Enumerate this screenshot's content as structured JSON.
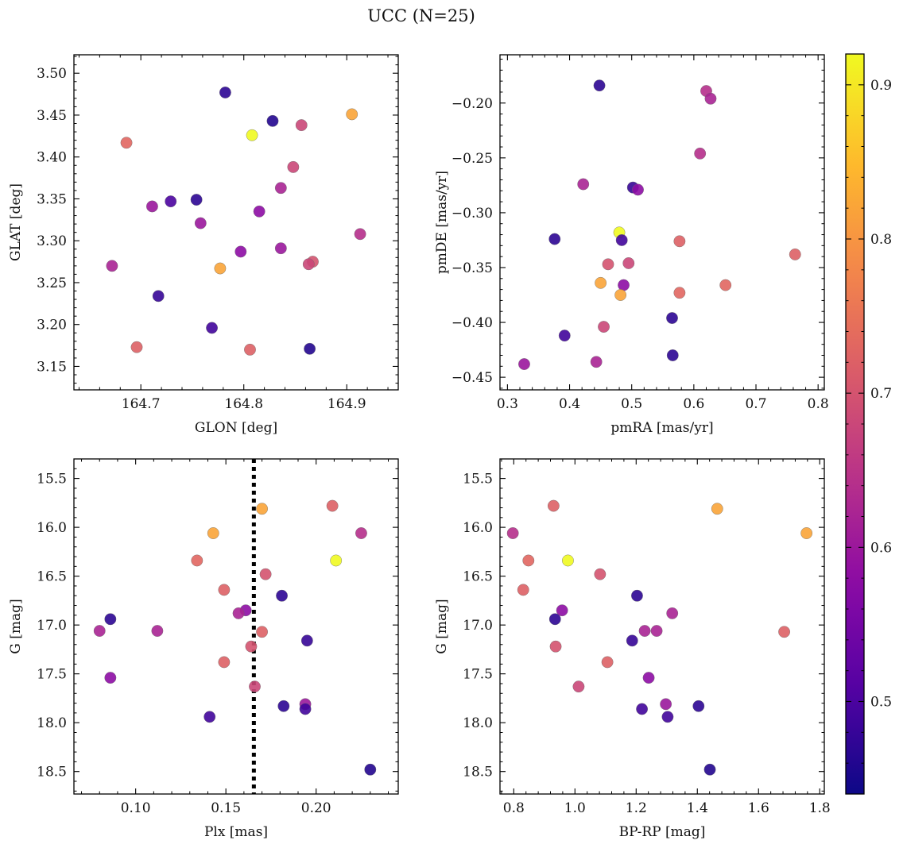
{
  "figure": {
    "title": "UCC (N=25)"
  },
  "colorbar": {
    "colormap": "plasma",
    "vmin": 0.44,
    "vmax": 0.92,
    "ticks": [
      0.5,
      0.6,
      0.7,
      0.8,
      0.9
    ],
    "tick_labels": [
      "0.5",
      "0.6",
      "0.7",
      "0.8",
      "0.9"
    ]
  },
  "chart_data": [
    {
      "type": "scatter",
      "xlabel": "GLON [deg]",
      "ylabel": "GLAT [deg]",
      "xlim": [
        164.635,
        164.95
      ],
      "ylim": [
        3.122,
        3.522
      ],
      "xticks": [
        164.7,
        164.8,
        164.9
      ],
      "xtick_labels": [
        "164.7",
        "164.8",
        "164.9"
      ],
      "yticks": [
        3.15,
        3.2,
        3.25,
        3.3,
        3.35,
        3.4,
        3.45,
        3.5
      ],
      "ytick_labels": [
        "3.15",
        "3.20",
        "3.25",
        "3.30",
        "3.35",
        "3.40",
        "3.45",
        "3.50"
      ],
      "points": [
        {
          "x": 164.782,
          "y": 3.477,
          "c": 0.47
        },
        {
          "x": 164.828,
          "y": 3.443,
          "c": 0.46
        },
        {
          "x": 164.856,
          "y": 3.438,
          "c": 0.68
        },
        {
          "x": 164.905,
          "y": 3.451,
          "c": 0.82
        },
        {
          "x": 164.808,
          "y": 3.426,
          "c": 0.92
        },
        {
          "x": 164.686,
          "y": 3.417,
          "c": 0.73
        },
        {
          "x": 164.848,
          "y": 3.388,
          "c": 0.68
        },
        {
          "x": 164.836,
          "y": 3.363,
          "c": 0.62
        },
        {
          "x": 164.754,
          "y": 3.349,
          "c": 0.47
        },
        {
          "x": 164.729,
          "y": 3.347,
          "c": 0.5
        },
        {
          "x": 164.711,
          "y": 3.341,
          "c": 0.6
        },
        {
          "x": 164.815,
          "y": 3.335,
          "c": 0.58
        },
        {
          "x": 164.758,
          "y": 3.321,
          "c": 0.6
        },
        {
          "x": 164.913,
          "y": 3.308,
          "c": 0.64
        },
        {
          "x": 164.836,
          "y": 3.291,
          "c": 0.6
        },
        {
          "x": 164.797,
          "y": 3.287,
          "c": 0.58
        },
        {
          "x": 164.867,
          "y": 3.275,
          "c": 0.7
        },
        {
          "x": 164.863,
          "y": 3.272,
          "c": 0.68
        },
        {
          "x": 164.672,
          "y": 3.27,
          "c": 0.62
        },
        {
          "x": 164.777,
          "y": 3.267,
          "c": 0.82
        },
        {
          "x": 164.717,
          "y": 3.234,
          "c": 0.48
        },
        {
          "x": 164.769,
          "y": 3.196,
          "c": 0.49
        },
        {
          "x": 164.696,
          "y": 3.173,
          "c": 0.72
        },
        {
          "x": 164.806,
          "y": 3.17,
          "c": 0.72
        },
        {
          "x": 164.864,
          "y": 3.171,
          "c": 0.46
        }
      ]
    },
    {
      "type": "scatter",
      "xlabel": "pmRA [mas/yr]",
      "ylabel": "pmDE [mas/yr]",
      "xlim": [
        0.288,
        0.81
      ],
      "ylim": [
        -0.4615,
        -0.156
      ],
      "xticks": [
        0.3,
        0.4,
        0.5,
        0.6,
        0.7,
        0.8
      ],
      "xtick_labels": [
        "0.3",
        "0.4",
        "0.5",
        "0.6",
        "0.7",
        "0.8"
      ],
      "yticks": [
        -0.45,
        -0.4,
        -0.35,
        -0.3,
        -0.25,
        -0.2
      ],
      "ytick_labels": [
        "−0.45",
        "−0.40",
        "−0.35",
        "−0.30",
        "−0.25",
        "−0.20"
      ],
      "points": [
        {
          "x": 0.448,
          "y": -0.184,
          "c": 0.47
        },
        {
          "x": 0.62,
          "y": -0.189,
          "c": 0.64
        },
        {
          "x": 0.627,
          "y": -0.196,
          "c": 0.62
        },
        {
          "x": 0.61,
          "y": -0.246,
          "c": 0.64
        },
        {
          "x": 0.422,
          "y": -0.274,
          "c": 0.62
        },
        {
          "x": 0.502,
          "y": -0.277,
          "c": 0.48
        },
        {
          "x": 0.51,
          "y": -0.279,
          "c": 0.58
        },
        {
          "x": 0.48,
          "y": -0.318,
          "c": 0.92
        },
        {
          "x": 0.376,
          "y": -0.324,
          "c": 0.47
        },
        {
          "x": 0.484,
          "y": -0.325,
          "c": 0.49
        },
        {
          "x": 0.577,
          "y": -0.326,
          "c": 0.72
        },
        {
          "x": 0.763,
          "y": -0.338,
          "c": 0.72
        },
        {
          "x": 0.462,
          "y": -0.347,
          "c": 0.7
        },
        {
          "x": 0.495,
          "y": -0.346,
          "c": 0.68
        },
        {
          "x": 0.45,
          "y": -0.364,
          "c": 0.82
        },
        {
          "x": 0.487,
          "y": -0.366,
          "c": 0.58
        },
        {
          "x": 0.651,
          "y": -0.366,
          "c": 0.73
        },
        {
          "x": 0.577,
          "y": -0.373,
          "c": 0.73
        },
        {
          "x": 0.482,
          "y": -0.375,
          "c": 0.82
        },
        {
          "x": 0.565,
          "y": -0.396,
          "c": 0.47
        },
        {
          "x": 0.455,
          "y": -0.404,
          "c": 0.68
        },
        {
          "x": 0.392,
          "y": -0.412,
          "c": 0.49
        },
        {
          "x": 0.566,
          "y": -0.43,
          "c": 0.47
        },
        {
          "x": 0.443,
          "y": -0.436,
          "c": 0.62
        },
        {
          "x": 0.327,
          "y": -0.438,
          "c": 0.6
        }
      ]
    },
    {
      "type": "scatter",
      "xlabel": "Plx [mas]",
      "ylabel": "G [mag]",
      "xlim": [
        0.0658,
        0.2455
      ],
      "ylim": [
        18.73,
        15.3
      ],
      "xticks": [
        0.1,
        0.15,
        0.2
      ],
      "xtick_labels": [
        "0.10",
        "0.15",
        "0.20"
      ],
      "yticks": [
        15.5,
        16.0,
        16.5,
        17.0,
        17.5,
        18.0,
        18.5
      ],
      "ytick_labels": [
        "15.5",
        "16.0",
        "16.5",
        "17.0",
        "17.5",
        "18.0",
        "18.5"
      ],
      "vline": {
        "x": 0.1655,
        "style": "dotted",
        "color": "#000000"
      },
      "points": [
        {
          "x": 0.17,
          "y": 15.81,
          "c": 0.82
        },
        {
          "x": 0.209,
          "y": 15.78,
          "c": 0.72
        },
        {
          "x": 0.143,
          "y": 16.06,
          "c": 0.82
        },
        {
          "x": 0.225,
          "y": 16.06,
          "c": 0.64
        },
        {
          "x": 0.134,
          "y": 16.34,
          "c": 0.73
        },
        {
          "x": 0.211,
          "y": 16.34,
          "c": 0.92
        },
        {
          "x": 0.172,
          "y": 16.48,
          "c": 0.7
        },
        {
          "x": 0.149,
          "y": 16.64,
          "c": 0.72
        },
        {
          "x": 0.181,
          "y": 16.7,
          "c": 0.47
        },
        {
          "x": 0.161,
          "y": 16.85,
          "c": 0.58
        },
        {
          "x": 0.157,
          "y": 16.88,
          "c": 0.62
        },
        {
          "x": 0.086,
          "y": 16.94,
          "c": 0.47
        },
        {
          "x": 0.08,
          "y": 17.06,
          "c": 0.62
        },
        {
          "x": 0.112,
          "y": 17.06,
          "c": 0.62
        },
        {
          "x": 0.17,
          "y": 17.07,
          "c": 0.72
        },
        {
          "x": 0.195,
          "y": 17.16,
          "c": 0.48
        },
        {
          "x": 0.164,
          "y": 17.22,
          "c": 0.7
        },
        {
          "x": 0.149,
          "y": 17.38,
          "c": 0.72
        },
        {
          "x": 0.086,
          "y": 17.54,
          "c": 0.58
        },
        {
          "x": 0.166,
          "y": 17.63,
          "c": 0.68
        },
        {
          "x": 0.194,
          "y": 17.81,
          "c": 0.6
        },
        {
          "x": 0.182,
          "y": 17.83,
          "c": 0.47
        },
        {
          "x": 0.194,
          "y": 17.86,
          "c": 0.49
        },
        {
          "x": 0.141,
          "y": 17.94,
          "c": 0.49
        },
        {
          "x": 0.23,
          "y": 18.48,
          "c": 0.46
        }
      ]
    },
    {
      "type": "scatter",
      "xlabel": "BP-RP [mag]",
      "ylabel": "G [mag]",
      "xlim": [
        0.755,
        1.815
      ],
      "ylim": [
        18.73,
        15.3
      ],
      "xticks": [
        0.8,
        1.0,
        1.2,
        1.4,
        1.6,
        1.8
      ],
      "xtick_labels": [
        "0.8",
        "1.0",
        "1.2",
        "1.4",
        "1.6",
        "1.8"
      ],
      "yticks": [
        15.5,
        16.0,
        16.5,
        17.0,
        17.5,
        18.0,
        18.5
      ],
      "ytick_labels": [
        "15.5",
        "16.0",
        "16.5",
        "17.0",
        "17.5",
        "18.0",
        "18.5"
      ],
      "points": [
        {
          "x": 0.93,
          "y": 15.78,
          "c": 0.72
        },
        {
          "x": 1.465,
          "y": 15.81,
          "c": 0.82
        },
        {
          "x": 0.797,
          "y": 16.06,
          "c": 0.64
        },
        {
          "x": 1.757,
          "y": 16.06,
          "c": 0.82
        },
        {
          "x": 0.848,
          "y": 16.34,
          "c": 0.73
        },
        {
          "x": 0.977,
          "y": 16.34,
          "c": 0.92
        },
        {
          "x": 1.082,
          "y": 16.48,
          "c": 0.7
        },
        {
          "x": 0.831,
          "y": 16.64,
          "c": 0.72
        },
        {
          "x": 1.203,
          "y": 16.7,
          "c": 0.47
        },
        {
          "x": 0.958,
          "y": 16.85,
          "c": 0.58
        },
        {
          "x": 1.318,
          "y": 16.88,
          "c": 0.62
        },
        {
          "x": 0.935,
          "y": 16.94,
          "c": 0.47
        },
        {
          "x": 1.228,
          "y": 17.06,
          "c": 0.62
        },
        {
          "x": 1.267,
          "y": 17.06,
          "c": 0.62
        },
        {
          "x": 1.684,
          "y": 17.07,
          "c": 0.72
        },
        {
          "x": 1.187,
          "y": 17.16,
          "c": 0.48
        },
        {
          "x": 0.937,
          "y": 17.22,
          "c": 0.7
        },
        {
          "x": 1.106,
          "y": 17.38,
          "c": 0.72
        },
        {
          "x": 1.241,
          "y": 17.54,
          "c": 0.58
        },
        {
          "x": 1.012,
          "y": 17.63,
          "c": 0.68
        },
        {
          "x": 1.297,
          "y": 17.81,
          "c": 0.6
        },
        {
          "x": 1.404,
          "y": 17.83,
          "c": 0.47
        },
        {
          "x": 1.219,
          "y": 17.86,
          "c": 0.49
        },
        {
          "x": 1.303,
          "y": 17.94,
          "c": 0.49
        },
        {
          "x": 1.441,
          "y": 18.48,
          "c": 0.46
        }
      ]
    }
  ]
}
